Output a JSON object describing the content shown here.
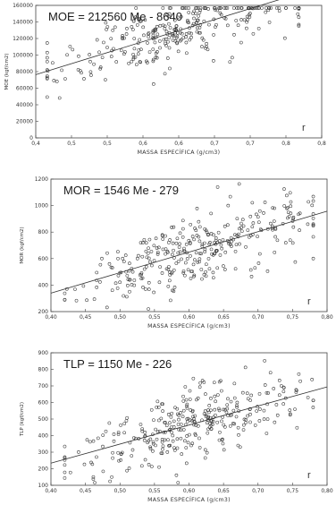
{
  "chart_data": [
    {
      "type": "scatter",
      "title": "MOE = 212560 Me - 8640",
      "xlabel": "MASSA ESPECÍFICA  (g/cm3)",
      "ylabel": "MOE (kgf/cm2)",
      "corner_label": "r",
      "xlim": [
        0.4,
        0.9
      ],
      "ylim": [
        0,
        160000
      ],
      "xticks": [
        "0,4",
        "0,5",
        "0,5",
        "0,6",
        "0,6",
        "0,7",
        "0,7",
        "0,8",
        "0,8"
      ],
      "yticks": [
        "0",
        "20000",
        "40000",
        "60000",
        "80000",
        "100000",
        "120000",
        "140000",
        "160000"
      ],
      "fit": {
        "slope": 212560,
        "intercept": -8640,
        "x_range": [
          0.4,
          0.9
        ]
      },
      "grid": false,
      "n_points": 300,
      "x_spread": [
        0.42,
        0.86
      ],
      "residual_sd": 19000,
      "seed": 17
    },
    {
      "type": "scatter",
      "title": "MOR = 1546 Me - 279",
      "xlabel": "MASSA ESPECÍFICA  (g/cm3)",
      "ylabel": "MOR (kgf/cm2)",
      "corner_label": "r",
      "xlim": [
        0.4,
        0.8
      ],
      "ylim": [
        200,
        1200
      ],
      "xticks": [
        "0,40",
        "0,45",
        "0,50",
        "0,55",
        "0,60",
        "0,65",
        "0,70",
        "0,75",
        "0,80"
      ],
      "yticks": [
        "200",
        "400",
        "600",
        "800",
        "1000",
        "1200"
      ],
      "fit": {
        "slope": 1546,
        "intercept": -279,
        "x_range": [
          0.4,
          0.8
        ]
      },
      "grid": false,
      "n_points": 320,
      "x_spread": [
        0.42,
        0.78
      ],
      "residual_sd": 125,
      "seed": 29
    },
    {
      "type": "scatter",
      "title": "TLP = 1150 Me - 226",
      "xlabel": "MASSA ESPECÍFICA  (g/cm3)",
      "ylabel": "TLP (kgf/cm2)",
      "corner_label": "r",
      "xlim": [
        0.4,
        0.8
      ],
      "ylim": [
        100,
        900
      ],
      "xticks": [
        "0,40",
        "0,45",
        "0,50",
        "0,55",
        "0,60",
        "0,65",
        "0,70",
        "0,75",
        "0,80"
      ],
      "yticks": [
        "100",
        "200",
        "300",
        "400",
        "500",
        "600",
        "700",
        "800",
        "900"
      ],
      "fit": {
        "slope": 1150,
        "intercept": -226,
        "x_range": [
          0.4,
          0.8
        ]
      },
      "grid": false,
      "n_points": 320,
      "x_spread": [
        0.42,
        0.78
      ],
      "residual_sd": 105,
      "seed": 43
    }
  ]
}
